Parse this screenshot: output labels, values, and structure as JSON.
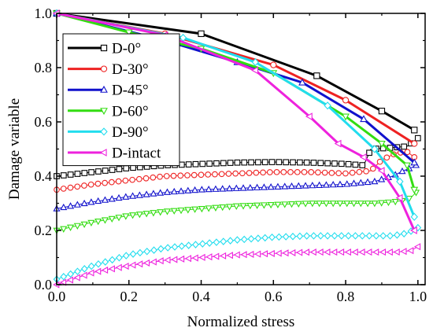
{
  "chart_data": {
    "type": "line",
    "xlabel": "Normalized stress",
    "ylabel": "Damage variable",
    "xlim": [
      0.0,
      1.02
    ],
    "ylim": [
      0.0,
      1.0
    ],
    "xticks": [
      "0.0",
      "0.2",
      "0.4",
      "0.6",
      "0.8",
      "1.0"
    ],
    "yticks": [
      "0.0",
      "0.2",
      "0.4",
      "0.6",
      "0.8",
      "1.0"
    ],
    "grid": false,
    "legend_position": "left",
    "series": [
      {
        "name": "D-0°",
        "color": "#000000",
        "marker": "square",
        "loading": [
          [
            0.0,
            1.0
          ],
          [
            0.4,
            0.925
          ],
          [
            0.72,
            0.77
          ],
          [
            0.9,
            0.64
          ],
          [
            0.99,
            0.57
          ]
        ],
        "unloading": [
          [
            0.0,
            0.4
          ],
          [
            0.1,
            0.415
          ],
          [
            0.2,
            0.43
          ],
          [
            0.3,
            0.44
          ],
          [
            0.4,
            0.445
          ],
          [
            0.5,
            0.45
          ],
          [
            0.6,
            0.452
          ],
          [
            0.7,
            0.45
          ],
          [
            0.8,
            0.445
          ],
          [
            0.85,
            0.44
          ],
          [
            0.87,
            0.5
          ],
          [
            0.93,
            0.505
          ],
          [
            0.97,
            0.51
          ],
          [
            1.0,
            0.54
          ]
        ]
      },
      {
        "name": "D-30°",
        "color": "#ee2222",
        "marker": "circle",
        "loading": [
          [
            0.0,
            1.0
          ],
          [
            0.3,
            0.925
          ],
          [
            0.6,
            0.81
          ],
          [
            0.8,
            0.68
          ],
          [
            0.99,
            0.52
          ]
        ],
        "unloading": [
          [
            0.0,
            0.35
          ],
          [
            0.1,
            0.37
          ],
          [
            0.2,
            0.385
          ],
          [
            0.3,
            0.4
          ],
          [
            0.4,
            0.405
          ],
          [
            0.5,
            0.41
          ],
          [
            0.6,
            0.415
          ],
          [
            0.7,
            0.415
          ],
          [
            0.8,
            0.41
          ],
          [
            0.87,
            0.42
          ],
          [
            0.9,
            0.46
          ],
          [
            0.94,
            0.485
          ],
          [
            0.97,
            0.49
          ],
          [
            0.99,
            0.47
          ]
        ]
      },
      {
        "name": "D-45°",
        "color": "#1111cc",
        "marker": "triangle-up",
        "loading": [
          [
            0.0,
            1.0
          ],
          [
            0.3,
            0.9
          ],
          [
            0.5,
            0.82
          ],
          [
            0.68,
            0.745
          ],
          [
            0.85,
            0.61
          ],
          [
            0.99,
            0.45
          ]
        ],
        "unloading": [
          [
            0.0,
            0.28
          ],
          [
            0.1,
            0.305
          ],
          [
            0.2,
            0.325
          ],
          [
            0.3,
            0.34
          ],
          [
            0.4,
            0.35
          ],
          [
            0.5,
            0.355
          ],
          [
            0.6,
            0.36
          ],
          [
            0.7,
            0.365
          ],
          [
            0.8,
            0.37
          ],
          [
            0.88,
            0.38
          ],
          [
            0.93,
            0.4
          ],
          [
            0.96,
            0.42
          ],
          [
            0.98,
            0.43
          ],
          [
            0.995,
            0.44
          ]
        ]
      },
      {
        "name": "D-60°",
        "color": "#33dd11",
        "marker": "triangle-down",
        "loading": [
          [
            0.0,
            1.0
          ],
          [
            0.2,
            0.93
          ],
          [
            0.4,
            0.87
          ],
          [
            0.6,
            0.78
          ],
          [
            0.8,
            0.62
          ],
          [
            0.9,
            0.52
          ],
          [
            0.97,
            0.44
          ],
          [
            0.99,
            0.35
          ]
        ],
        "unloading": [
          [
            0.0,
            0.2
          ],
          [
            0.1,
            0.23
          ],
          [
            0.2,
            0.255
          ],
          [
            0.3,
            0.27
          ],
          [
            0.4,
            0.28
          ],
          [
            0.5,
            0.29
          ],
          [
            0.6,
            0.295
          ],
          [
            0.7,
            0.3
          ],
          [
            0.8,
            0.3
          ],
          [
            0.88,
            0.3
          ],
          [
            0.93,
            0.305
          ],
          [
            0.96,
            0.31
          ],
          [
            0.98,
            0.32
          ],
          [
            0.995,
            0.34
          ]
        ]
      },
      {
        "name": "D-90°",
        "color": "#22ddee",
        "marker": "diamond",
        "loading": [
          [
            0.0,
            1.0
          ],
          [
            0.35,
            0.91
          ],
          [
            0.55,
            0.82
          ],
          [
            0.75,
            0.66
          ],
          [
            0.88,
            0.5
          ],
          [
            0.95,
            0.38
          ],
          [
            0.99,
            0.25
          ]
        ],
        "unloading": [
          [
            0.0,
            0.02
          ],
          [
            0.1,
            0.07
          ],
          [
            0.2,
            0.11
          ],
          [
            0.3,
            0.135
          ],
          [
            0.4,
            0.15
          ],
          [
            0.5,
            0.165
          ],
          [
            0.6,
            0.175
          ],
          [
            0.7,
            0.18
          ],
          [
            0.8,
            0.18
          ],
          [
            0.88,
            0.18
          ],
          [
            0.93,
            0.18
          ],
          [
            0.97,
            0.19
          ],
          [
            1.0,
            0.21
          ]
        ]
      },
      {
        "name": "D-intact",
        "color": "#ee22dd",
        "marker": "triangle-left",
        "loading": [
          [
            0.0,
            1.0
          ],
          [
            0.3,
            0.92
          ],
          [
            0.55,
            0.79
          ],
          [
            0.7,
            0.62
          ],
          [
            0.78,
            0.52
          ],
          [
            0.85,
            0.47
          ],
          [
            0.9,
            0.42
          ],
          [
            0.95,
            0.32
          ],
          [
            0.99,
            0.2
          ]
        ],
        "unloading": [
          [
            0.0,
            0.0
          ],
          [
            0.1,
            0.045
          ],
          [
            0.2,
            0.07
          ],
          [
            0.3,
            0.09
          ],
          [
            0.4,
            0.1
          ],
          [
            0.5,
            0.11
          ],
          [
            0.6,
            0.115
          ],
          [
            0.7,
            0.12
          ],
          [
            0.8,
            0.12
          ],
          [
            0.88,
            0.12
          ],
          [
            0.94,
            0.12
          ],
          [
            0.98,
            0.125
          ],
          [
            1.0,
            0.14
          ]
        ]
      }
    ]
  }
}
